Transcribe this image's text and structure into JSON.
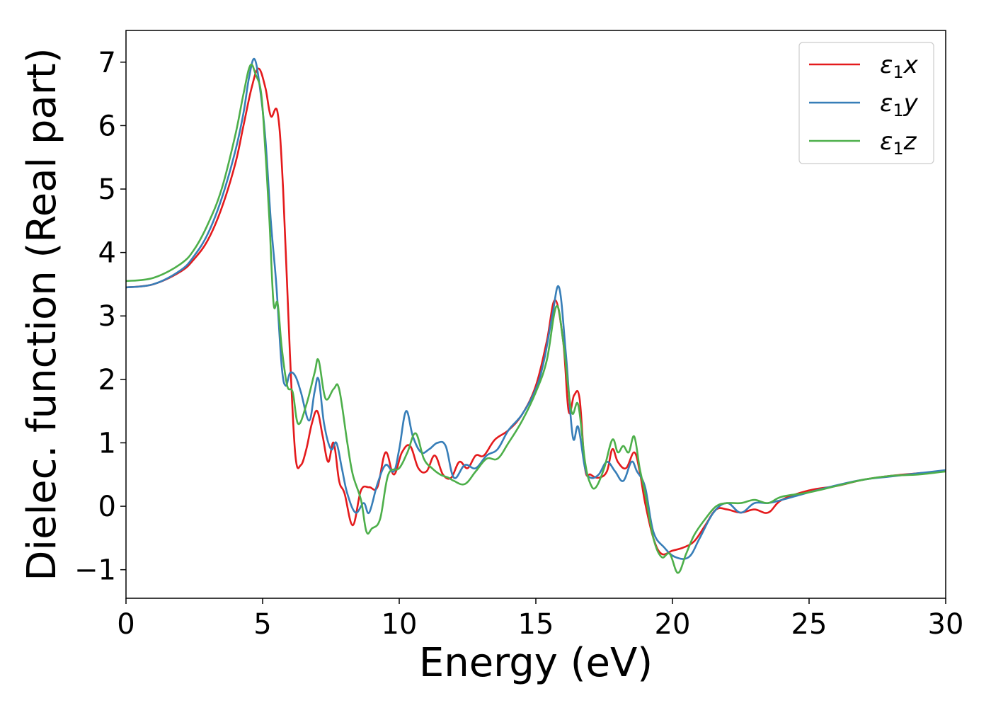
{
  "chart_data": {
    "type": "line",
    "title": "",
    "xlabel": "Energy (eV)",
    "ylabel": "Dielec. function (Real part)",
    "xlim": [
      0,
      30
    ],
    "ylim": [
      -1.45,
      7.5
    ],
    "xticks": [
      0,
      5,
      10,
      15,
      20,
      25,
      30
    ],
    "xtick_labels": [
      "0",
      "5",
      "10",
      "15",
      "20",
      "25",
      "30"
    ],
    "yticks": [
      -1,
      0,
      1,
      2,
      3,
      4,
      5,
      6,
      7
    ],
    "ytick_labels": [
      "−1",
      "0",
      "1",
      "2",
      "3",
      "4",
      "5",
      "6",
      "7"
    ],
    "grid": false,
    "legend_position": "top-right",
    "series": [
      {
        "name": "ε₁x",
        "legend_base": "ε",
        "legend_sub": "1",
        "legend_var": "x",
        "color": "#e41a1c",
        "x": [
          0,
          1,
          2,
          2.5,
          3,
          3.5,
          4,
          4.3,
          4.6,
          4.85,
          5.1,
          5.3,
          5.55,
          5.75,
          6.0,
          6.2,
          6.4,
          6.6,
          6.8,
          7.0,
          7.2,
          7.4,
          7.6,
          7.8,
          8.0,
          8.3,
          8.6,
          8.9,
          9.2,
          9.5,
          9.8,
          10.1,
          10.4,
          10.7,
          11.0,
          11.3,
          11.6,
          11.9,
          12.2,
          12.5,
          12.8,
          13.1,
          13.5,
          14.0,
          14.5,
          15.0,
          15.4,
          15.7,
          16.0,
          16.2,
          16.4,
          16.6,
          16.8,
          17.0,
          17.3,
          17.6,
          17.8,
          18.0,
          18.3,
          18.6,
          18.8,
          19.0,
          19.3,
          19.6,
          20.0,
          20.4,
          20.8,
          21.2,
          21.6,
          22.0,
          22.5,
          23.0,
          23.5,
          24.0,
          25.0,
          26.0,
          27.0,
          28.0,
          29.0,
          30.0
        ],
        "y": [
          3.45,
          3.5,
          3.7,
          3.9,
          4.2,
          4.7,
          5.4,
          6.0,
          6.6,
          6.9,
          6.6,
          6.15,
          6.2,
          5.0,
          2.4,
          0.8,
          0.65,
          0.9,
          1.3,
          1.5,
          1.1,
          0.7,
          1.0,
          0.4,
          0.2,
          -0.3,
          0.25,
          0.3,
          0.3,
          0.85,
          0.5,
          0.85,
          0.95,
          0.6,
          0.55,
          0.8,
          0.5,
          0.45,
          0.7,
          0.6,
          0.8,
          0.8,
          1.05,
          1.2,
          1.45,
          1.9,
          2.6,
          3.25,
          2.6,
          1.5,
          1.75,
          1.7,
          0.6,
          0.5,
          0.45,
          0.55,
          0.9,
          0.7,
          0.6,
          0.85,
          0.55,
          0.05,
          -0.5,
          -0.75,
          -0.7,
          -0.65,
          -0.55,
          -0.3,
          -0.05,
          -0.05,
          -0.1,
          -0.05,
          -0.1,
          0.1,
          0.25,
          0.32,
          0.42,
          0.48,
          0.52,
          0.55
        ]
      },
      {
        "name": "ε₁y",
        "legend_base": "ε",
        "legend_sub": "1",
        "legend_var": "y",
        "color": "#377eb8",
        "x": [
          0,
          1,
          2,
          2.5,
          3,
          3.5,
          4,
          4.3,
          4.5,
          4.7,
          4.9,
          5.1,
          5.3,
          5.5,
          5.7,
          5.85,
          6.0,
          6.2,
          6.4,
          6.7,
          6.9,
          7.05,
          7.25,
          7.5,
          7.7,
          7.9,
          8.1,
          8.4,
          8.7,
          8.9,
          9.2,
          9.5,
          9.8,
          10.0,
          10.25,
          10.5,
          10.8,
          11.1,
          11.4,
          11.7,
          12.0,
          12.4,
          12.8,
          13.2,
          13.6,
          14.0,
          14.5,
          15.0,
          15.3,
          15.6,
          15.85,
          16.1,
          16.35,
          16.55,
          16.8,
          17.0,
          17.3,
          17.6,
          17.9,
          18.2,
          18.5,
          18.7,
          19.0,
          19.3,
          19.7,
          20.1,
          20.6,
          21.0,
          21.5,
          22.0,
          22.5,
          23.0,
          23.5,
          24.0,
          25.0,
          26.0,
          27.0,
          28.0,
          29.0,
          30.0
        ],
        "y": [
          3.45,
          3.5,
          3.72,
          3.95,
          4.3,
          4.85,
          5.6,
          6.2,
          6.75,
          7.05,
          6.6,
          5.8,
          4.5,
          3.5,
          2.2,
          1.9,
          2.1,
          2.05,
          1.8,
          1.35,
          1.8,
          2.0,
          1.3,
          0.9,
          1.0,
          0.6,
          0.2,
          -0.1,
          0.05,
          -0.1,
          0.35,
          0.65,
          0.55,
          0.9,
          1.5,
          1.1,
          0.85,
          0.9,
          1.0,
          0.95,
          0.45,
          0.65,
          0.6,
          0.8,
          0.9,
          1.2,
          1.45,
          1.85,
          2.3,
          3.0,
          3.45,
          2.4,
          1.1,
          1.25,
          0.6,
          0.45,
          0.5,
          0.7,
          0.55,
          0.4,
          0.7,
          0.55,
          0.3,
          -0.4,
          -0.65,
          -0.8,
          -0.8,
          -0.5,
          -0.1,
          0.05,
          -0.1,
          0.05,
          0.05,
          0.1,
          0.22,
          0.33,
          0.42,
          0.47,
          0.52,
          0.57
        ]
      },
      {
        "name": "ε₁z",
        "legend_base": "ε",
        "legend_sub": "1",
        "legend_var": "z",
        "color": "#4daf4a",
        "x": [
          0,
          1,
          2,
          2.5,
          3,
          3.5,
          4,
          4.3,
          4.55,
          4.75,
          4.95,
          5.1,
          5.25,
          5.4,
          5.55,
          5.7,
          5.9,
          6.1,
          6.3,
          6.6,
          6.9,
          7.05,
          7.3,
          7.6,
          7.8,
          8.1,
          8.3,
          8.6,
          8.8,
          9.0,
          9.3,
          9.6,
          10.0,
          10.3,
          10.6,
          10.9,
          11.2,
          11.5,
          11.8,
          12.0,
          12.4,
          12.8,
          13.2,
          13.6,
          14.0,
          14.5,
          15.0,
          15.4,
          15.75,
          16.0,
          16.3,
          16.55,
          16.8,
          17.0,
          17.2,
          17.5,
          17.8,
          18.0,
          18.2,
          18.4,
          18.6,
          18.8,
          19.0,
          19.3,
          19.6,
          19.9,
          20.2,
          20.5,
          20.8,
          21.2,
          21.6,
          22.0,
          22.5,
          23.0,
          23.5,
          24.0,
          25.0,
          26.0,
          27.0,
          28.0,
          29.0,
          30.0
        ],
        "y": [
          3.55,
          3.6,
          3.82,
          4.05,
          4.45,
          5.0,
          5.85,
          6.5,
          6.95,
          6.8,
          6.5,
          5.6,
          4.5,
          3.2,
          3.2,
          2.5,
          1.9,
          1.8,
          1.3,
          1.6,
          2.1,
          2.3,
          1.7,
          1.85,
          1.85,
          1.0,
          0.5,
          0.1,
          -0.4,
          -0.35,
          -0.2,
          0.5,
          0.6,
          0.85,
          1.15,
          0.75,
          0.6,
          0.5,
          0.45,
          0.4,
          0.35,
          0.55,
          0.75,
          0.75,
          1.0,
          1.35,
          1.8,
          2.3,
          3.15,
          2.6,
          1.5,
          1.6,
          0.7,
          0.35,
          0.3,
          0.6,
          1.05,
          0.85,
          0.95,
          0.85,
          1.1,
          0.6,
          0.2,
          -0.5,
          -0.8,
          -0.75,
          -1.05,
          -0.75,
          -0.45,
          -0.2,
          0.0,
          0.05,
          0.05,
          0.1,
          0.05,
          0.15,
          0.22,
          0.32,
          0.42,
          0.48,
          0.5,
          0.55
        ]
      }
    ]
  }
}
